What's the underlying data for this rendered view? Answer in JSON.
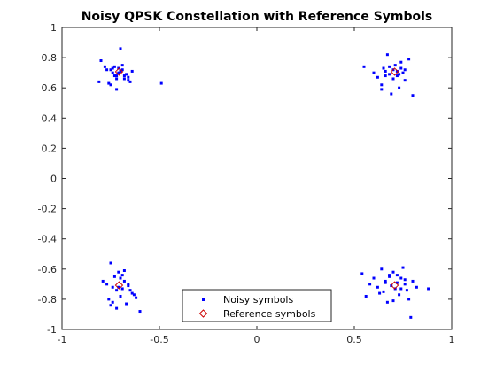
{
  "chart_data": {
    "type": "scatter",
    "title": "Noisy QPSK Constellation with Reference Symbols",
    "xlabel": "",
    "ylabel": "",
    "xlim": [
      -1,
      1
    ],
    "ylim": [
      -1,
      1
    ],
    "xticks": [
      -1,
      -0.5,
      0,
      0.5,
      1
    ],
    "xtick_labels": [
      "-1",
      "-0.5",
      "0",
      "0.5",
      "1"
    ],
    "yticks": [
      -1,
      -0.8,
      -0.6,
      -0.4,
      -0.2,
      0,
      0.2,
      0.4,
      0.6,
      0.8,
      1
    ],
    "ytick_labels": [
      "-1",
      "-0.8",
      "-0.6",
      "-0.4",
      "-0.2",
      "0",
      "0.2",
      "0.4",
      "0.6",
      "0.8",
      "1"
    ],
    "grid": false,
    "legend_position": "bottom-center",
    "series": [
      {
        "name": "Noisy symbols",
        "marker": "point",
        "color": "#0000ff",
        "x": [
          -0.81,
          -0.8,
          -0.78,
          -0.76,
          -0.75,
          -0.74,
          -0.73,
          -0.72,
          -0.71,
          -0.7,
          -0.69,
          -0.68,
          -0.67,
          -0.66,
          -0.65,
          -0.69,
          -0.71,
          -0.73,
          -0.75,
          -0.68,
          -0.7,
          -0.74,
          -0.66,
          -0.64,
          -0.72,
          -0.77,
          -0.49,
          -0.72,
          0.55,
          0.6,
          0.62,
          0.64,
          0.65,
          0.66,
          0.67,
          0.68,
          0.69,
          0.7,
          0.71,
          0.72,
          0.73,
          0.74,
          0.75,
          0.76,
          0.78,
          0.8,
          0.68,
          0.7,
          0.72,
          0.66,
          0.74,
          0.64,
          0.76,
          0.73,
          -0.77,
          -0.76,
          -0.75,
          -0.74,
          -0.73,
          -0.72,
          -0.71,
          -0.7,
          -0.69,
          -0.68,
          -0.67,
          -0.66,
          -0.65,
          -0.64,
          -0.62,
          -0.6,
          -0.79,
          -0.74,
          -0.7,
          -0.72,
          -0.68,
          -0.66,
          -0.63,
          -0.75,
          -0.71,
          -0.69,
          0.54,
          0.56,
          0.58,
          0.6,
          0.62,
          0.64,
          0.65,
          0.66,
          0.67,
          0.68,
          0.69,
          0.7,
          0.71,
          0.72,
          0.73,
          0.74,
          0.75,
          0.76,
          0.77,
          0.78,
          0.8,
          0.82,
          0.88,
          0.63,
          0.68,
          0.72,
          0.76,
          0.7,
          0.66,
          0.74,
          0.79
        ],
        "y": [
          0.64,
          0.78,
          0.74,
          0.63,
          0.72,
          0.7,
          0.68,
          0.59,
          0.73,
          0.71,
          0.75,
          0.66,
          0.69,
          0.67,
          0.64,
          0.72,
          0.7,
          0.74,
          0.62,
          0.68,
          0.86,
          0.73,
          0.65,
          0.71,
          0.68,
          0.72,
          0.63,
          0.66,
          0.74,
          0.7,
          0.67,
          0.59,
          0.73,
          0.71,
          0.82,
          0.69,
          0.56,
          0.72,
          0.75,
          0.68,
          0.6,
          0.77,
          0.7,
          0.65,
          0.79,
          0.55,
          0.74,
          0.66,
          0.71,
          0.68,
          0.73,
          0.62,
          0.72,
          0.69,
          -0.7,
          -0.8,
          -0.56,
          -0.72,
          -0.65,
          -0.86,
          -0.62,
          -0.78,
          -0.73,
          -0.68,
          -0.83,
          -0.71,
          -0.74,
          -0.76,
          -0.79,
          -0.88,
          -0.68,
          -0.82,
          -0.66,
          -0.74,
          -0.61,
          -0.7,
          -0.77,
          -0.84,
          -0.72,
          -0.64,
          -0.63,
          -0.78,
          -0.7,
          -0.66,
          -0.72,
          -0.6,
          -0.75,
          -0.68,
          -0.82,
          -0.64,
          -0.71,
          -0.62,
          -0.73,
          -0.69,
          -0.77,
          -0.66,
          -0.59,
          -0.7,
          -0.74,
          -0.8,
          -0.68,
          -0.72,
          -0.73,
          -0.76,
          -0.65,
          -0.64,
          -0.67,
          -0.81,
          -0.69,
          -0.73,
          -0.92
        ]
      },
      {
        "name": "Reference symbols",
        "marker": "diamond",
        "color": "#cc0000",
        "x": [
          -0.7071,
          0.7071,
          -0.7071,
          0.7071
        ],
        "y": [
          0.7071,
          0.7071,
          -0.7071,
          -0.7071
        ]
      }
    ]
  }
}
